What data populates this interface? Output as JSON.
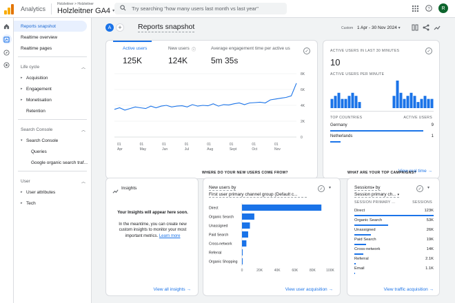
{
  "topbar": {
    "app_name": "Analytics",
    "breadcrumb": "Holzleitner > Holzleitner",
    "property": "Holzleitner GA4",
    "search_placeholder": "Try searching \"how many users last month vs last year\"",
    "avatar_letter": "R"
  },
  "sidebar": {
    "top_items": [
      "Reports snapshot",
      "Realtime overview",
      "Realtime pages"
    ],
    "lifecycle": {
      "title": "Life cycle",
      "items": [
        "Acquisition",
        "Engagement",
        "Monetisation",
        "Retention"
      ]
    },
    "search_console": {
      "title": "Search Console",
      "group": "Search Console",
      "items": [
        "Queries",
        "Google organic search traf..."
      ]
    },
    "user": {
      "title": "User",
      "items": [
        "User attributes",
        "Tech"
      ]
    }
  },
  "header": {
    "avatar": "A",
    "title": "Reports snapshot",
    "custom_label": "Custom",
    "date_range": "1 Apr - 30 Nov 2024"
  },
  "overview": {
    "tabs": [
      {
        "label": "Active users",
        "value": "125K"
      },
      {
        "label": "New users",
        "value": "124K"
      },
      {
        "label": "Average engagement time per active us",
        "value": "5m 35s"
      }
    ],
    "chart_y_ticks": [
      "8K",
      "6K",
      "4K",
      "2K",
      "0"
    ],
    "chart_x_ticks": [
      {
        "day": "01",
        "month": "Apr"
      },
      {
        "day": "01",
        "month": "May"
      },
      {
        "day": "01",
        "month": "Jun"
      },
      {
        "day": "01",
        "month": "Jul"
      },
      {
        "day": "01",
        "month": "Aug"
      },
      {
        "day": "01",
        "month": "Sept"
      },
      {
        "day": "01",
        "month": "Oct"
      },
      {
        "day": "01",
        "month": "Nov"
      }
    ]
  },
  "realtime": {
    "heading": "ACTIVE USERS IN LAST 30 MINUTES",
    "value": "10",
    "per_minute_label": "ACTIVE USERS PER MINUTE",
    "per_minute": [
      3,
      4,
      5,
      3,
      3,
      4,
      5,
      4,
      2,
      0,
      0,
      0,
      0,
      0,
      0,
      0,
      0,
      0,
      4,
      9,
      5,
      3,
      4,
      5,
      4,
      2,
      3,
      4,
      3,
      3
    ],
    "col_countries": "TOP COUNTRIES",
    "col_users": "ACTIVE USERS",
    "countries": [
      {
        "name": "Germany",
        "value": "9",
        "share": 0.9
      },
      {
        "name": "Netherlands",
        "value": "1",
        "share": 0.1
      }
    ],
    "link": "View real time"
  },
  "insights": {
    "title": "Insights",
    "heading": "Your Insights will appear here soon.",
    "body": "In the meantime, you can create new custom insights to monitor your most important metrics.",
    "learn_more": "Learn more",
    "link": "View all insights"
  },
  "new_users": {
    "question": "WHERE DO YOUR NEW USERS COME FROM?",
    "metric": "New users by",
    "dimension": "First user primary channel group (Default c...",
    "x_ticks": [
      "0",
      "20K",
      "40K",
      "60K",
      "80K",
      "100K"
    ],
    "link": "View user acquisition"
  },
  "campaigns": {
    "question": "WHAT ARE YOUR TOP CAMPAIGNS?",
    "metric": "Sessions",
    "dimension": "Session primary ch...",
    "col_dimension": "SESSION PRIMARY ...",
    "col_metric": "SESSIONS",
    "rows": [
      {
        "name": "Direct",
        "value": "123K",
        "share": 1.0
      },
      {
        "name": "Organic Search",
        "value": "53K",
        "share": 0.43
      },
      {
        "name": "Unassigned",
        "value": "26K",
        "share": 0.21
      },
      {
        "name": "Paid Search",
        "value": "19K",
        "share": 0.15
      },
      {
        "name": "Cross-network",
        "value": "14K",
        "share": 0.11
      },
      {
        "name": "Referral",
        "value": "2.1K",
        "share": 0.02
      },
      {
        "name": "Email",
        "value": "1.1K",
        "share": 0.01
      }
    ],
    "link": "View traffic acquisition"
  },
  "chart_data": [
    {
      "type": "line",
      "ylim": [
        0,
        8000
      ],
      "x": [
        "Apr",
        "",
        "",
        "",
        "",
        "",
        "",
        "",
        "",
        "",
        "",
        "",
        "",
        "",
        "",
        "",
        "",
        "",
        "",
        "",
        "",
        "",
        "",
        "",
        "",
        "",
        "",
        "",
        "",
        "",
        "",
        "",
        "",
        "",
        "",
        ""
      ],
      "series": [
        {
          "values": [
            3500,
            3700,
            3400,
            3600,
            3800,
            3700,
            3600,
            3900,
            3700,
            3900,
            4000,
            3800,
            3900,
            3950,
            3800,
            4100,
            3900,
            4000,
            3950,
            4200,
            3900,
            4100,
            4050,
            4200,
            4300,
            4100,
            4300,
            4350,
            4400,
            4300,
            4700,
            4800,
            4900,
            5000,
            5200,
            6800
          ]
        }
      ]
    },
    {
      "type": "bar",
      "categories": [
        "Direct",
        "Organic Search",
        "Unassigned",
        "Paid Search",
        "Cross-network",
        "Referral",
        "Organic Shopping"
      ],
      "values": [
        90000,
        14000,
        9000,
        7000,
        5000,
        800,
        300
      ],
      "xlim": [
        0,
        100000
      ]
    }
  ]
}
